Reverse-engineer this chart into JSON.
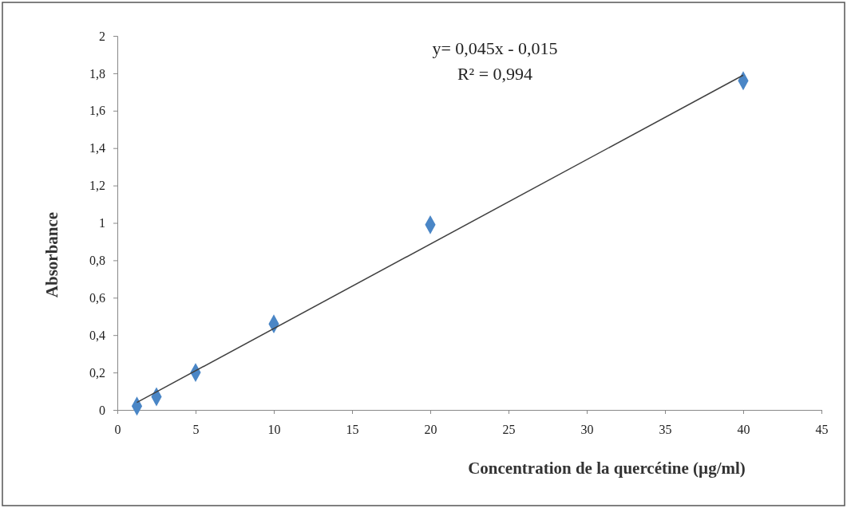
{
  "chart_data": {
    "type": "scatter",
    "xlabel": "Concentration de la quercétine (µg/ml)",
    "ylabel": "Absorbance",
    "annotations": [
      "y= 0,045x - 0,015",
      "R² = 0,994"
    ],
    "series": [
      {
        "color": "#4a86c6",
        "marker": "diamond",
        "x": [
          1.25,
          2.5,
          5,
          10,
          20,
          40
        ],
        "values": [
          0.02,
          0.07,
          0.2,
          0.46,
          0.99,
          1.76
        ]
      },
      {
        "type": "line",
        "color": "#404040",
        "marker": "none",
        "line_style": "solid",
        "x": [
          1.25,
          40
        ],
        "values": [
          0.04,
          1.79
        ]
      }
    ],
    "xlim": [
      0,
      45
    ],
    "xticks": [
      0,
      5,
      10,
      15,
      20,
      25,
      30,
      35,
      40,
      45
    ],
    "ylim": [
      0,
      2
    ],
    "yticks": [
      0,
      {
        "value": 0.2,
        "label": "0,2"
      },
      {
        "value": 0.4,
        "label": "0,4"
      },
      {
        "value": 0.6,
        "label": "0,6"
      },
      {
        "value": 0.8,
        "label": "0,8"
      },
      1,
      {
        "value": 1.2,
        "label": "1,2"
      },
      {
        "value": 1.4,
        "label": "1,4"
      },
      {
        "value": 1.6,
        "label": "1,6"
      },
      {
        "value": 1.8,
        "label": "1,8"
      },
      2
    ],
    "grid": false
  }
}
